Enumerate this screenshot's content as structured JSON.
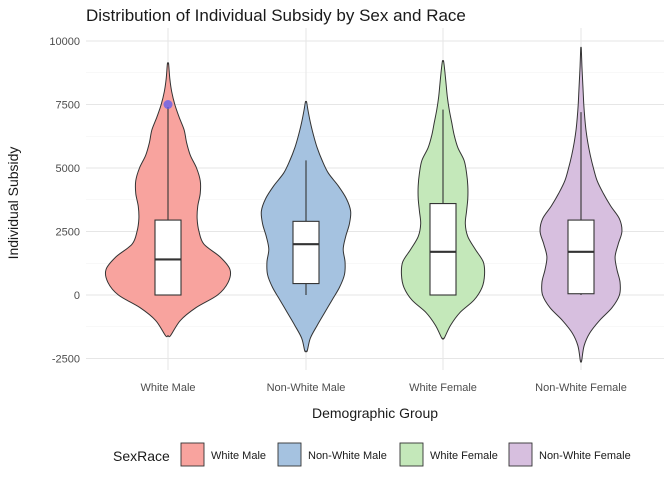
{
  "chart_data": {
    "type": "violin",
    "title": "Distribution of Individual Subsidy by Sex and Race",
    "xlabel": "Demographic Group",
    "ylabel": "Individual Subsidy",
    "ylim": [
      -2800,
      10300
    ],
    "yticks": [
      -2500,
      0,
      2500,
      5000,
      7500,
      10000
    ],
    "ytick_labels": [
      "-2500",
      "0",
      "2500",
      "5000",
      "7500",
      "10000"
    ],
    "grid": true,
    "legend": {
      "title": "SexRace",
      "position": "bottom"
    },
    "categories": [
      "White Male",
      "Non-White Male",
      "White Female",
      "Non-White Female"
    ],
    "series": [
      {
        "name": "White Male",
        "color": "#F8A39E",
        "violin": {
          "min": -1600,
          "max": 9100,
          "profile": [
            [
              -1600,
              0.04
            ],
            [
              -1000,
              0.2
            ],
            [
              -500,
              0.45
            ],
            [
              0,
              0.8
            ],
            [
              500,
              0.97
            ],
            [
              1000,
              1.0
            ],
            [
              1500,
              0.84
            ],
            [
              2000,
              0.58
            ],
            [
              2500,
              0.5
            ],
            [
              3000,
              0.47
            ],
            [
              3500,
              0.48
            ],
            [
              4000,
              0.52
            ],
            [
              4500,
              0.52
            ],
            [
              5000,
              0.46
            ],
            [
              5500,
              0.36
            ],
            [
              6000,
              0.3
            ],
            [
              6500,
              0.26
            ],
            [
              7000,
              0.18
            ],
            [
              7500,
              0.11
            ],
            [
              8000,
              0.06
            ],
            [
              8500,
              0.03
            ],
            [
              9100,
              0.01
            ]
          ]
        },
        "box": {
          "q1": 0,
          "median": 1400,
          "q3": 2950,
          "whisker_low": 0,
          "whisker_high": 7400
        },
        "outliers": [
          7500
        ]
      },
      {
        "name": "Non-White Male",
        "color": "#A5C2E0",
        "violin": {
          "min": -2200,
          "max": 7600,
          "profile": [
            [
              -2200,
              0.02
            ],
            [
              -1700,
              0.07
            ],
            [
              -1200,
              0.18
            ],
            [
              -700,
              0.3
            ],
            [
              -200,
              0.42
            ],
            [
              300,
              0.54
            ],
            [
              800,
              0.62
            ],
            [
              1300,
              0.63
            ],
            [
              1800,
              0.6
            ],
            [
              2300,
              0.64
            ],
            [
              2800,
              0.7
            ],
            [
              3300,
              0.72
            ],
            [
              3800,
              0.65
            ],
            [
              4300,
              0.52
            ],
            [
              4800,
              0.36
            ],
            [
              5300,
              0.26
            ],
            [
              5800,
              0.18
            ],
            [
              6300,
              0.12
            ],
            [
              6800,
              0.07
            ],
            [
              7300,
              0.03
            ],
            [
              7600,
              0.01
            ]
          ]
        },
        "box": {
          "q1": 450,
          "median": 2000,
          "q3": 2900,
          "whisker_low": 0,
          "whisker_high": 5300
        },
        "outliers": []
      },
      {
        "name": "White Female",
        "color": "#C4E8BA",
        "violin": {
          "min": -1700,
          "max": 9200,
          "profile": [
            [
              -1700,
              0.02
            ],
            [
              -1200,
              0.12
            ],
            [
              -700,
              0.27
            ],
            [
              -200,
              0.5
            ],
            [
              300,
              0.63
            ],
            [
              800,
              0.67
            ],
            [
              1300,
              0.65
            ],
            [
              1800,
              0.52
            ],
            [
              2300,
              0.4
            ],
            [
              2800,
              0.36
            ],
            [
              3300,
              0.38
            ],
            [
              3800,
              0.4
            ],
            [
              4300,
              0.4
            ],
            [
              4800,
              0.38
            ],
            [
              5300,
              0.34
            ],
            [
              5800,
              0.24
            ],
            [
              6300,
              0.18
            ],
            [
              6800,
              0.14
            ],
            [
              7300,
              0.1
            ],
            [
              7800,
              0.07
            ],
            [
              8300,
              0.05
            ],
            [
              8800,
              0.03
            ],
            [
              9200,
              0.01
            ]
          ]
        },
        "box": {
          "q1": 0,
          "median": 1700,
          "q3": 3600,
          "whisker_low": 0,
          "whisker_high": 7300
        },
        "outliers": []
      },
      {
        "name": "Non-White Female",
        "color": "#D7BFDF",
        "violin": {
          "min": -2600,
          "max": 9700,
          "profile": [
            [
              -2600,
              0.01
            ],
            [
              -2000,
              0.05
            ],
            [
              -1500,
              0.14
            ],
            [
              -1000,
              0.3
            ],
            [
              -500,
              0.5
            ],
            [
              0,
              0.62
            ],
            [
              500,
              0.63
            ],
            [
              1000,
              0.58
            ],
            [
              1500,
              0.55
            ],
            [
              2000,
              0.6
            ],
            [
              2500,
              0.66
            ],
            [
              3000,
              0.62
            ],
            [
              3500,
              0.48
            ],
            [
              4000,
              0.36
            ],
            [
              4500,
              0.26
            ],
            [
              5000,
              0.2
            ],
            [
              5500,
              0.15
            ],
            [
              6000,
              0.11
            ],
            [
              6500,
              0.08
            ],
            [
              7000,
              0.06
            ],
            [
              7500,
              0.045
            ],
            [
              8000,
              0.035
            ],
            [
              8500,
              0.025
            ],
            [
              9000,
              0.015
            ],
            [
              9700,
              0.005
            ]
          ]
        },
        "box": {
          "q1": 50,
          "median": 1700,
          "q3": 2950,
          "whisker_low": 0,
          "whisker_high": 7200
        },
        "outliers": []
      }
    ],
    "highlight_color": "#5B5BF0"
  }
}
